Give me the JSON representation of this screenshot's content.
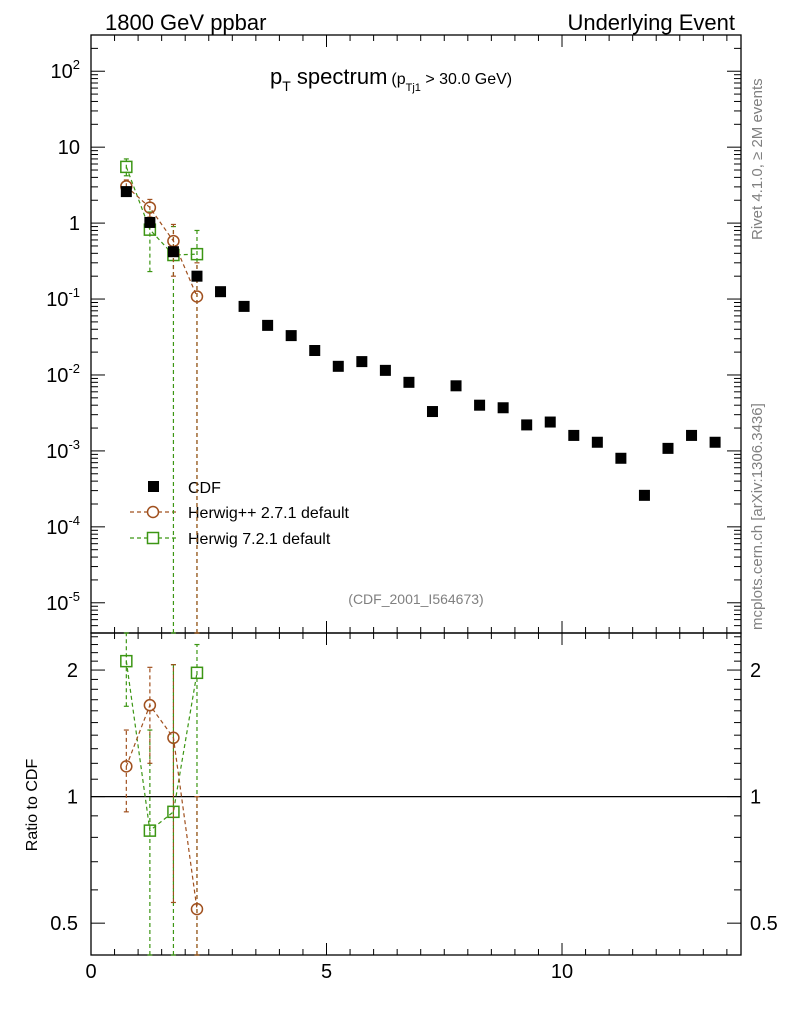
{
  "header": {
    "left": "1800 GeV ppbar",
    "right": "Underlying Event"
  },
  "side_labels": {
    "rivet": "Rivet 4.1.0, ≥ 2M events",
    "mcplots": "mcplots.cern.ch [arXiv:1306.3436]"
  },
  "main_title": {
    "p": "p",
    "sub_T": "T",
    "spectrum": " spectrum",
    "cut_open": "(p",
    "cut_sub": "Tj1",
    "cut_rest": " > 30.0 GeV)"
  },
  "analysis_id": "(CDF_2001_I564673)",
  "colors": {
    "cdf": "#000000",
    "herwigpp": "#a0501e",
    "herwig7": "#3c9614"
  },
  "chart_data": [
    {
      "type": "scatter",
      "panel": "main",
      "yscale": "log",
      "xlim": [
        0,
        13.8
      ],
      "ylim": [
        4e-06,
        300
      ],
      "xlabel": "",
      "ylabel": "",
      "ytick_labels": [
        "10^-5",
        "10^-4",
        "10^-3",
        "10^-2",
        "10^-1",
        "1",
        "10",
        "10^2"
      ],
      "legend": {
        "position": "lower-left",
        "entries": [
          {
            "key": "cdf",
            "label": "CDF"
          },
          {
            "key": "herwigpp",
            "label": "Herwig++ 2.7.1 default"
          },
          {
            "key": "herwig7",
            "label": "Herwig 7.2.1 default"
          }
        ]
      },
      "series": [
        {
          "key": "cdf",
          "name": "CDF",
          "marker": "filled-square",
          "x": [
            0.75,
            1.25,
            1.75,
            2.25,
            2.75,
            3.25,
            3.75,
            4.25,
            4.75,
            5.25,
            5.75,
            6.25,
            6.75,
            7.25,
            7.75,
            8.25,
            8.75,
            9.25,
            9.75,
            10.25,
            10.75,
            11.25,
            11.75,
            12.25,
            12.75,
            13.25
          ],
          "y": [
            2.6,
            1.02,
            0.42,
            0.2,
            0.125,
            0.08,
            0.045,
            0.033,
            0.021,
            0.013,
            0.015,
            0.0115,
            0.008,
            0.0033,
            0.0072,
            0.004,
            0.0037,
            0.0022,
            0.0024,
            0.0016,
            0.0013,
            0.0008,
            0.00026,
            0.00108,
            0.0016,
            0.0013
          ]
        },
        {
          "key": "herwigpp",
          "name": "Herwig++ 2.7.1 default",
          "marker": "open-circle",
          "x": [
            0.75,
            1.25,
            1.75,
            2.25
          ],
          "y": [
            3.05,
            1.6,
            0.58,
            0.108
          ],
          "y_lo": [
            2.4,
            1.2,
            0.2,
            0.0
          ],
          "y_hi": [
            3.7,
            2.05,
            0.96,
            0.3
          ]
        },
        {
          "key": "herwig7",
          "name": "Herwig 7.2.1 default",
          "marker": "open-square",
          "x": [
            0.75,
            1.25,
            1.75,
            2.25
          ],
          "y": [
            5.5,
            0.82,
            0.38,
            0.39
          ],
          "y_lo": [
            4.2,
            0.23,
            0.0,
            0.0
          ],
          "y_hi": [
            7.0,
            1.4,
            0.9,
            0.8
          ]
        }
      ]
    },
    {
      "type": "scatter",
      "panel": "ratio",
      "yscale": "log",
      "xlim": [
        0,
        13.8
      ],
      "ylim": [
        0.42,
        2.45
      ],
      "ylabel": "Ratio to CDF",
      "reference_line": 1,
      "ytick_values": [
        0.5,
        1,
        2
      ],
      "ytick_labels": [
        "0.5",
        "1",
        "2"
      ],
      "xtick_values": [
        0,
        5,
        10
      ],
      "xtick_labels": [
        "0",
        "5",
        "10"
      ],
      "series": [
        {
          "key": "herwigpp",
          "name": "Herwig++ 2.7.1 default",
          "marker": "open-circle",
          "x": [
            0.75,
            1.25,
            1.75,
            2.25
          ],
          "y": [
            1.18,
            1.65,
            1.38,
            0.54
          ],
          "y_lo": [
            0.92,
            1.2,
            0.56,
            0.0
          ],
          "y_hi": [
            1.44,
            2.03,
            2.06,
            1.0
          ]
        },
        {
          "key": "herwig7",
          "name": "Herwig 7.2.1 default",
          "marker": "open-square",
          "x": [
            0.75,
            1.25,
            1.75,
            2.25
          ],
          "y": [
            2.1,
            0.83,
            0.92,
            1.97
          ],
          "y_lo": [
            1.64,
            0.25,
            0.0,
            0.0
          ],
          "y_hi": [
            2.55,
            1.44,
            2.06,
            2.3
          ]
        }
      ]
    }
  ]
}
